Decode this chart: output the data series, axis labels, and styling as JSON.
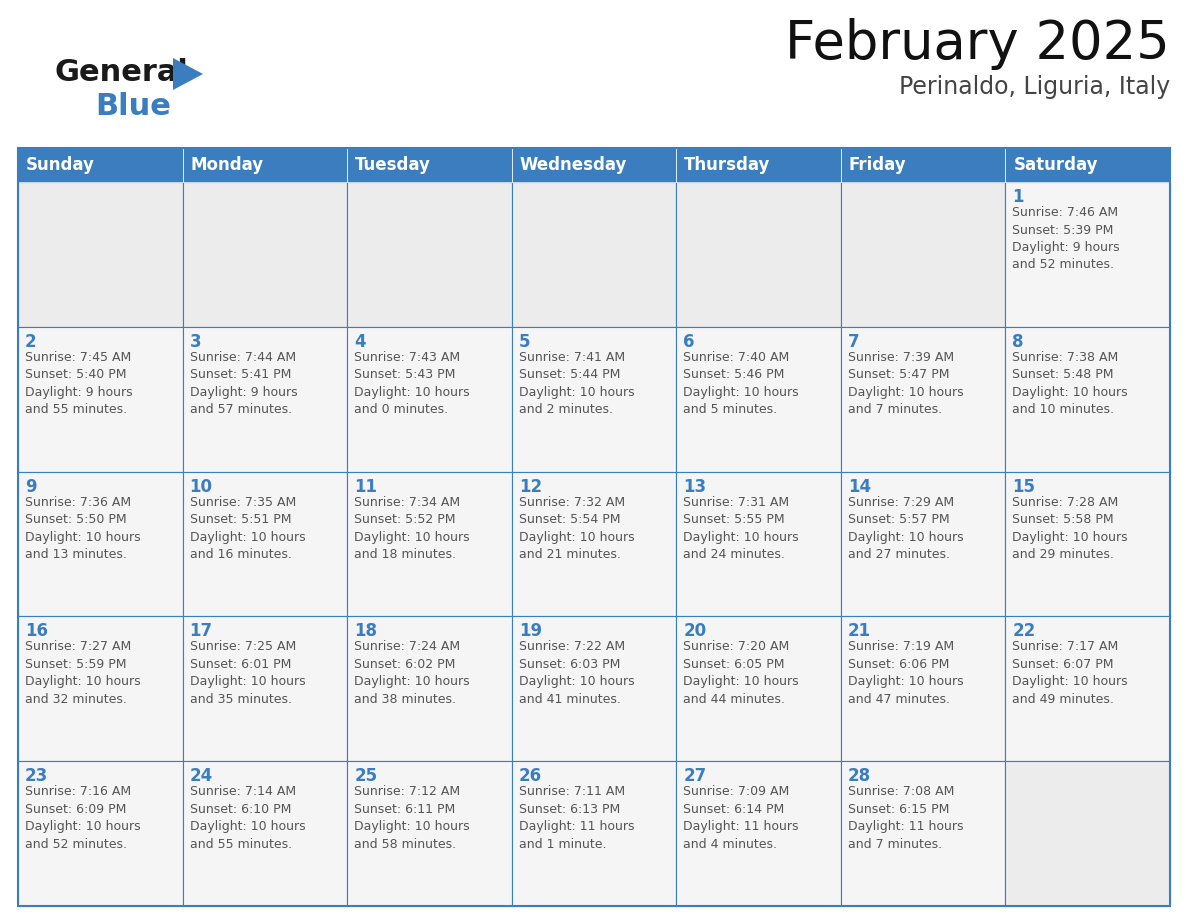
{
  "title": "February 2025",
  "subtitle": "Perinaldo, Liguria, Italy",
  "header_color": "#3a7ebf",
  "header_text_color": "#ffffff",
  "cell_bg_filled": "#f5f5f5",
  "cell_bg_empty": "#ececec",
  "cell_border_color": "#3a7ebf",
  "day_num_color": "#3a7ebf",
  "detail_text_color": "#555555",
  "days_of_week": [
    "Sunday",
    "Monday",
    "Tuesday",
    "Wednesday",
    "Thursday",
    "Friday",
    "Saturday"
  ],
  "weeks": [
    [
      {
        "day": null,
        "info": null
      },
      {
        "day": null,
        "info": null
      },
      {
        "day": null,
        "info": null
      },
      {
        "day": null,
        "info": null
      },
      {
        "day": null,
        "info": null
      },
      {
        "day": null,
        "info": null
      },
      {
        "day": "1",
        "info": "Sunrise: 7:46 AM\nSunset: 5:39 PM\nDaylight: 9 hours\nand 52 minutes."
      }
    ],
    [
      {
        "day": "2",
        "info": "Sunrise: 7:45 AM\nSunset: 5:40 PM\nDaylight: 9 hours\nand 55 minutes."
      },
      {
        "day": "3",
        "info": "Sunrise: 7:44 AM\nSunset: 5:41 PM\nDaylight: 9 hours\nand 57 minutes."
      },
      {
        "day": "4",
        "info": "Sunrise: 7:43 AM\nSunset: 5:43 PM\nDaylight: 10 hours\nand 0 minutes."
      },
      {
        "day": "5",
        "info": "Sunrise: 7:41 AM\nSunset: 5:44 PM\nDaylight: 10 hours\nand 2 minutes."
      },
      {
        "day": "6",
        "info": "Sunrise: 7:40 AM\nSunset: 5:46 PM\nDaylight: 10 hours\nand 5 minutes."
      },
      {
        "day": "7",
        "info": "Sunrise: 7:39 AM\nSunset: 5:47 PM\nDaylight: 10 hours\nand 7 minutes."
      },
      {
        "day": "8",
        "info": "Sunrise: 7:38 AM\nSunset: 5:48 PM\nDaylight: 10 hours\nand 10 minutes."
      }
    ],
    [
      {
        "day": "9",
        "info": "Sunrise: 7:36 AM\nSunset: 5:50 PM\nDaylight: 10 hours\nand 13 minutes."
      },
      {
        "day": "10",
        "info": "Sunrise: 7:35 AM\nSunset: 5:51 PM\nDaylight: 10 hours\nand 16 minutes."
      },
      {
        "day": "11",
        "info": "Sunrise: 7:34 AM\nSunset: 5:52 PM\nDaylight: 10 hours\nand 18 minutes."
      },
      {
        "day": "12",
        "info": "Sunrise: 7:32 AM\nSunset: 5:54 PM\nDaylight: 10 hours\nand 21 minutes."
      },
      {
        "day": "13",
        "info": "Sunrise: 7:31 AM\nSunset: 5:55 PM\nDaylight: 10 hours\nand 24 minutes."
      },
      {
        "day": "14",
        "info": "Sunrise: 7:29 AM\nSunset: 5:57 PM\nDaylight: 10 hours\nand 27 minutes."
      },
      {
        "day": "15",
        "info": "Sunrise: 7:28 AM\nSunset: 5:58 PM\nDaylight: 10 hours\nand 29 minutes."
      }
    ],
    [
      {
        "day": "16",
        "info": "Sunrise: 7:27 AM\nSunset: 5:59 PM\nDaylight: 10 hours\nand 32 minutes."
      },
      {
        "day": "17",
        "info": "Sunrise: 7:25 AM\nSunset: 6:01 PM\nDaylight: 10 hours\nand 35 minutes."
      },
      {
        "day": "18",
        "info": "Sunrise: 7:24 AM\nSunset: 6:02 PM\nDaylight: 10 hours\nand 38 minutes."
      },
      {
        "day": "19",
        "info": "Sunrise: 7:22 AM\nSunset: 6:03 PM\nDaylight: 10 hours\nand 41 minutes."
      },
      {
        "day": "20",
        "info": "Sunrise: 7:20 AM\nSunset: 6:05 PM\nDaylight: 10 hours\nand 44 minutes."
      },
      {
        "day": "21",
        "info": "Sunrise: 7:19 AM\nSunset: 6:06 PM\nDaylight: 10 hours\nand 47 minutes."
      },
      {
        "day": "22",
        "info": "Sunrise: 7:17 AM\nSunset: 6:07 PM\nDaylight: 10 hours\nand 49 minutes."
      }
    ],
    [
      {
        "day": "23",
        "info": "Sunrise: 7:16 AM\nSunset: 6:09 PM\nDaylight: 10 hours\nand 52 minutes."
      },
      {
        "day": "24",
        "info": "Sunrise: 7:14 AM\nSunset: 6:10 PM\nDaylight: 10 hours\nand 55 minutes."
      },
      {
        "day": "25",
        "info": "Sunrise: 7:12 AM\nSunset: 6:11 PM\nDaylight: 10 hours\nand 58 minutes."
      },
      {
        "day": "26",
        "info": "Sunrise: 7:11 AM\nSunset: 6:13 PM\nDaylight: 11 hours\nand 1 minute."
      },
      {
        "day": "27",
        "info": "Sunrise: 7:09 AM\nSunset: 6:14 PM\nDaylight: 11 hours\nand 4 minutes."
      },
      {
        "day": "28",
        "info": "Sunrise: 7:08 AM\nSunset: 6:15 PM\nDaylight: 11 hours\nand 7 minutes."
      },
      {
        "day": null,
        "info": null
      }
    ]
  ],
  "logo_general_color": "#1a1a1a",
  "logo_blue_color": "#3a7ebf",
  "title_fontsize": 38,
  "subtitle_fontsize": 17,
  "header_fontsize": 12,
  "day_num_fontsize": 12,
  "detail_fontsize": 9
}
